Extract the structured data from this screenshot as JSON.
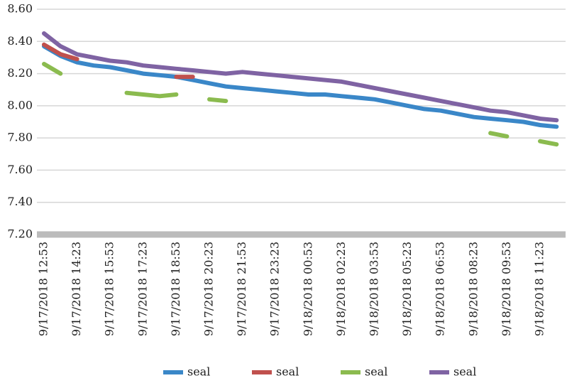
{
  "chart_data": {
    "type": "line",
    "categories": [
      "9/17/2018 12:53",
      null,
      "9/17/2018 14:23",
      null,
      "9/17/2018 15:53",
      null,
      "9/17/2018 17:23",
      null,
      "9/17/2018 18:53",
      null,
      "9/17/2018 20:23",
      null,
      "9/17/2018 21:53",
      null,
      "9/17/2018 23:23",
      null,
      "9/18/2018 00:53",
      null,
      "9/18/2018 02:23",
      null,
      "9/18/2018 03:53",
      null,
      "9/18/2018 05:23",
      null,
      "9/18/2018 06:53",
      null,
      "9/18/2018 08:23",
      null,
      "9/18/2018 09:53",
      null,
      "9/18/2018 11:23",
      null
    ],
    "series": [
      {
        "name": "seal",
        "color": "#3a87c8",
        "values": [
          8.37,
          8.31,
          8.27,
          8.25,
          8.24,
          8.22,
          8.2,
          8.19,
          8.18,
          8.16,
          8.14,
          8.12,
          8.11,
          8.1,
          8.09,
          8.08,
          8.07,
          8.07,
          8.06,
          8.05,
          8.04,
          8.02,
          8.0,
          7.98,
          7.97,
          7.95,
          7.93,
          7.92,
          7.91,
          7.9,
          7.88,
          7.87
        ]
      },
      {
        "name": "seal",
        "color": "#c0504d",
        "values": [
          8.38,
          8.32,
          8.29,
          null,
          null,
          null,
          null,
          null,
          8.18,
          8.18,
          null,
          null,
          null,
          null,
          null,
          null,
          null,
          null,
          null,
          null,
          null,
          null,
          null,
          null,
          null,
          null,
          null,
          null,
          null,
          null,
          null,
          null
        ]
      },
      {
        "name": "seal",
        "color": "#8bbb4f",
        "values": [
          8.26,
          8.2,
          null,
          null,
          null,
          8.08,
          8.07,
          8.06,
          8.07,
          null,
          8.04,
          8.03,
          null,
          null,
          null,
          null,
          null,
          null,
          null,
          null,
          null,
          null,
          null,
          null,
          null,
          null,
          null,
          7.83,
          7.81,
          null,
          7.78,
          7.76
        ]
      },
      {
        "name": "seal",
        "color": "#7f63a3",
        "values": [
          8.45,
          8.37,
          8.32,
          8.3,
          8.28,
          8.27,
          8.25,
          8.24,
          8.23,
          8.22,
          8.21,
          8.2,
          8.21,
          8.2,
          8.19,
          8.18,
          8.17,
          8.16,
          8.15,
          8.13,
          8.11,
          8.09,
          8.07,
          8.05,
          8.03,
          8.01,
          7.99,
          7.97,
          7.96,
          7.94,
          7.92,
          7.91
        ]
      }
    ],
    "ylim": [
      7.2,
      8.6
    ],
    "yticks": [
      {
        "value": 7.2,
        "label": "7.20"
      },
      {
        "value": 7.4,
        "label": "7.40"
      },
      {
        "value": 7.6,
        "label": "7.60"
      },
      {
        "value": 7.8,
        "label": "7.80"
      },
      {
        "value": 8.0,
        "label": "8.00"
      },
      {
        "value": 8.2,
        "label": "8.20"
      },
      {
        "value": 8.4,
        "label": "8.40"
      },
      {
        "value": 8.6,
        "label": "8.60"
      }
    ],
    "grid": true,
    "legend": "bottom"
  }
}
